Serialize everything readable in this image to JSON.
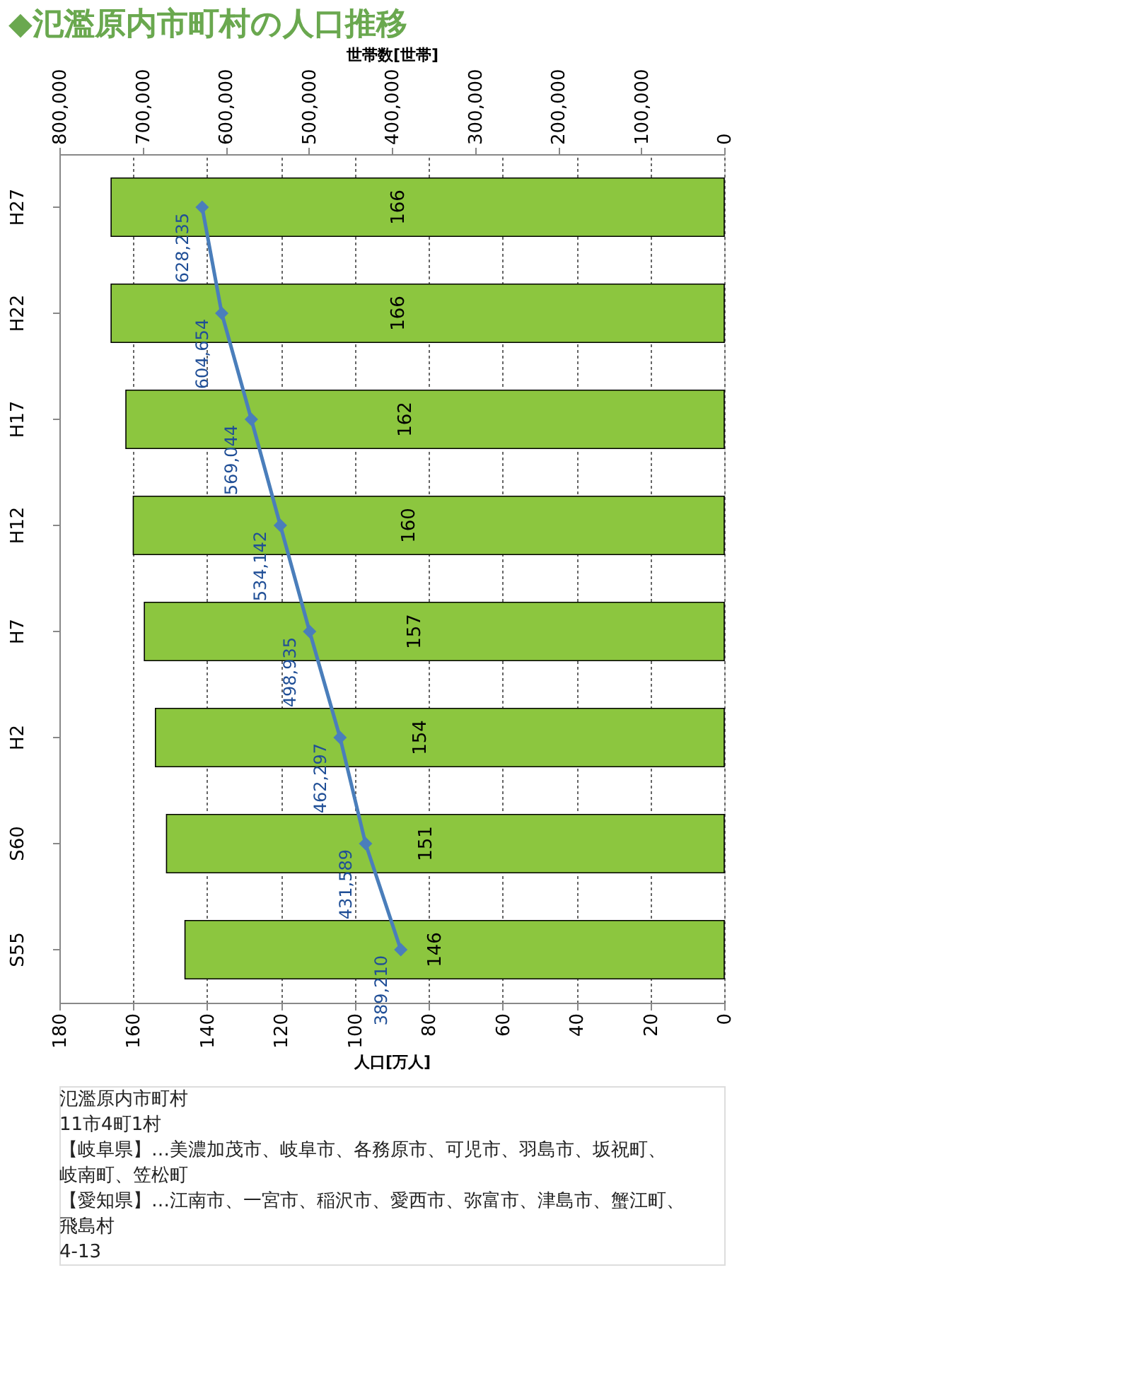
{
  "chart_data": {
    "type": "bar",
    "orientation": "horizontal",
    "title": "◆氾濫原内市町村の人口推移",
    "xlabel": "人口[万人]",
    "x2label": "世帯数[世帯]",
    "categories": [
      "H27",
      "H22",
      "H17",
      "H12",
      "H7",
      "H2",
      "S60",
      "S55"
    ],
    "xlim": [
      180,
      0
    ],
    "xticks": [
      180,
      160,
      140,
      120,
      100,
      80,
      60,
      40,
      20,
      0
    ],
    "x2lim": [
      800000,
      0
    ],
    "x2ticks": [
      {
        "value": 800000,
        "label": "800,000"
      },
      {
        "value": 700000,
        "label": "700,000"
      },
      {
        "value": 600000,
        "label": "600,000"
      },
      {
        "value": 500000,
        "label": "500,000"
      },
      {
        "value": 400000,
        "label": "400,000"
      },
      {
        "value": 300000,
        "label": "300,000"
      },
      {
        "value": 200000,
        "label": "200,000"
      },
      {
        "value": 100000,
        "label": "100,000"
      },
      0
    ],
    "grid": "x",
    "data_labels": true,
    "series": [
      {
        "color": "#8cc63f",
        "values": [
          166,
          166,
          162,
          160,
          157,
          154,
          151,
          146
        ]
      },
      {
        "type": "line",
        "axis": "x2",
        "color": "#4a7ebb",
        "marker": "diamond",
        "line_style": "solid",
        "values": [
          628235,
          604654,
          569044,
          534142,
          498935,
          462297,
          431589,
          389210
        ],
        "value_labels": [
          "628,235",
          "604,654",
          "569,044",
          "534,142",
          "498,935",
          "462,297",
          "431,589",
          "389,210"
        ]
      }
    ],
    "annotations": [
      "氾濫原内市町村",
      "11市4町1村",
      "【岐阜県】…美濃加茂市、岐阜市、各務原市、可児市、羽島市、坂祝町、",
      "岐南町、笠松町",
      "【愛知県】…江南市、一宮市、稲沢市、愛西市、弥富市、津島市、蟹江町、",
      "飛島村",
      "4-13"
    ]
  }
}
